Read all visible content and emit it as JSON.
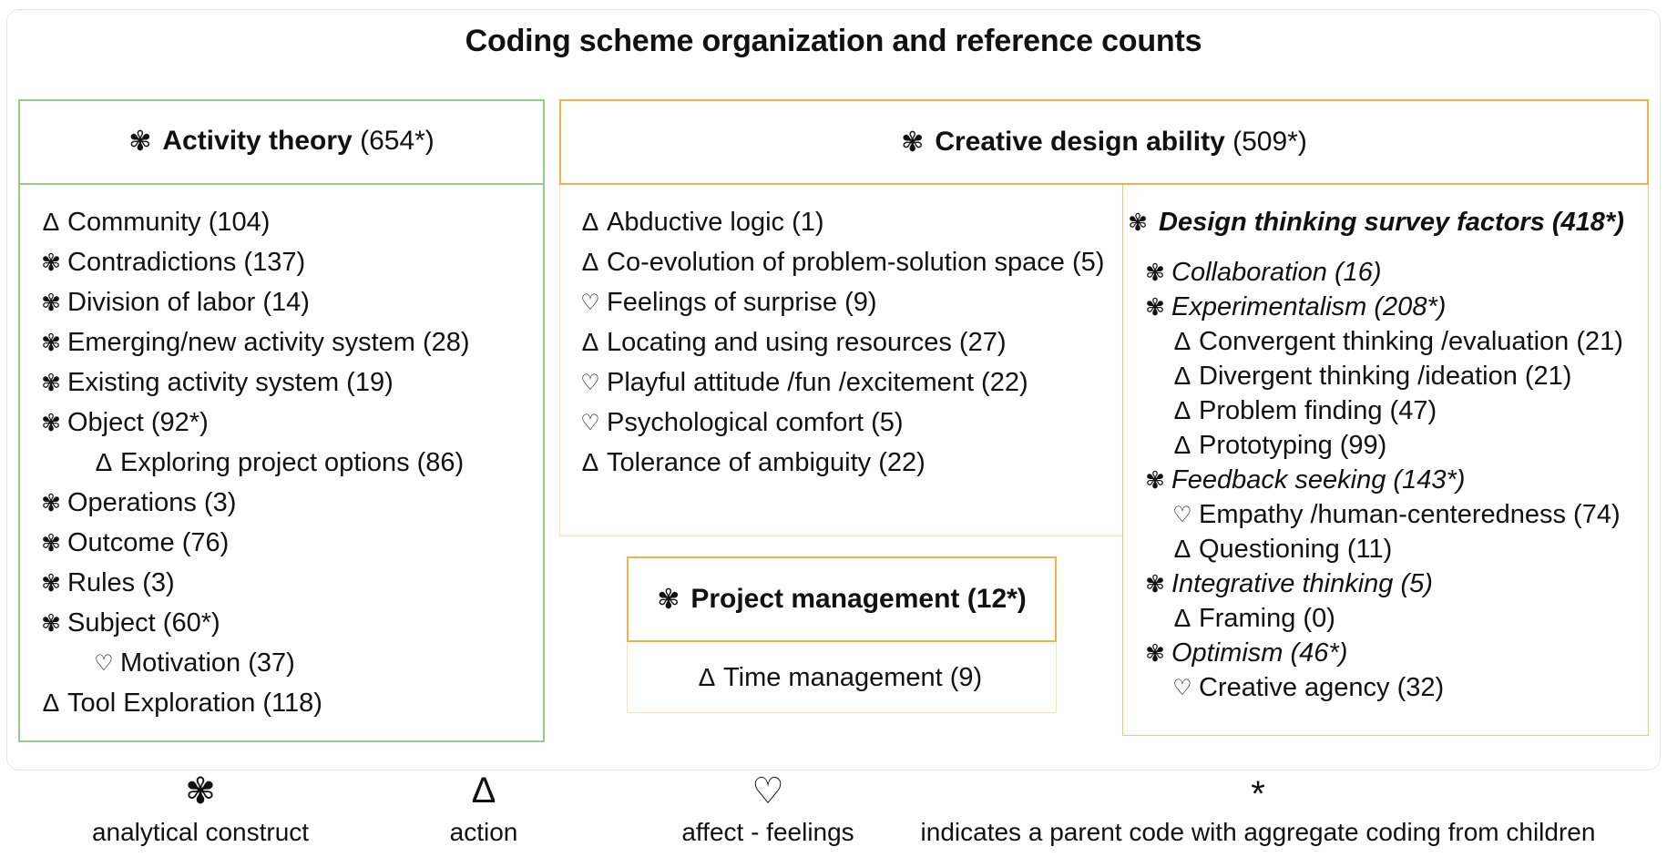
{
  "title": "Coding scheme organization and reference counts",
  "colors": {
    "green": "#9bc98b",
    "orange": "#f2b14a",
    "orange_light": "#fbe3b8"
  },
  "symbols": {
    "construct": "✾",
    "action": "Δ",
    "affect": "♡",
    "aggregate": "*"
  },
  "activity_theory": {
    "name": "Activity theory",
    "count": "(654*)",
    "items": [
      {
        "sym": "Δ",
        "type": "action",
        "label": "Community (104)"
      },
      {
        "sym": "✾",
        "type": "construct",
        "label": "Contradictions (137)"
      },
      {
        "sym": "✾",
        "type": "construct",
        "label": "Division of labor (14)"
      },
      {
        "sym": "✾",
        "type": "construct",
        "label": "Emerging/new activity system (28)"
      },
      {
        "sym": "✾",
        "type": "construct",
        "label": "Existing activity system (19)"
      },
      {
        "sym": "✾",
        "type": "construct",
        "label": "Object (92*)"
      },
      {
        "sym": "Δ",
        "type": "action",
        "label": "Exploring project options (86)",
        "indent": 1
      },
      {
        "sym": "✾",
        "type": "construct",
        "label": "Operations (3)"
      },
      {
        "sym": "✾",
        "type": "construct",
        "label": "Outcome (76)"
      },
      {
        "sym": "✾",
        "type": "construct",
        "label": "Rules (3)"
      },
      {
        "sym": "✾",
        "type": "construct",
        "label": "Subject (60*)"
      },
      {
        "sym": "♡",
        "type": "affect",
        "label": "Motivation (37)",
        "indent": 1
      },
      {
        "sym": "Δ",
        "type": "action",
        "label": "Tool Exploration (118)"
      }
    ]
  },
  "creative_design": {
    "name": "Creative design ability",
    "count": "(509*)",
    "items": [
      {
        "sym": "Δ",
        "type": "action",
        "label": "Abductive logic (1)"
      },
      {
        "sym": "Δ",
        "type": "action",
        "label": "Co-evolution of problem-solution space (5)"
      },
      {
        "sym": "♡",
        "type": "affect",
        "label": "Feelings of surprise (9)"
      },
      {
        "sym": "Δ",
        "type": "action",
        "label": "Locating and using resources (27)"
      },
      {
        "sym": "♡",
        "type": "affect",
        "label": "Playful attitude /fun /excitement (22)"
      },
      {
        "sym": "♡",
        "type": "affect",
        "label": "Psychological comfort (5)"
      },
      {
        "sym": "Δ",
        "type": "action",
        "label": "Tolerance of ambiguity (22)"
      }
    ]
  },
  "design_thinking": {
    "name": "Design thinking survey factors (418*)",
    "items": [
      {
        "sym": "✾",
        "type": "construct",
        "label": "Collaboration (16)",
        "style": "italic"
      },
      {
        "sym": "✾",
        "type": "construct",
        "label": "Experimentalism (208*)",
        "style": "italic"
      },
      {
        "sym": "Δ",
        "type": "action",
        "label": "Convergent thinking /evaluation (21)",
        "indent": 1
      },
      {
        "sym": "Δ",
        "type": "action",
        "label": "Divergent thinking /ideation (21)",
        "indent": 1
      },
      {
        "sym": "Δ",
        "type": "action",
        "label": "Problem finding (47)",
        "indent": 1
      },
      {
        "sym": "Δ",
        "type": "action",
        "label": "Prototyping (99)",
        "indent": 1
      },
      {
        "sym": "✾",
        "type": "construct",
        "label": "Feedback seeking (143*)",
        "style": "italic"
      },
      {
        "sym": "♡",
        "type": "affect",
        "label": "Empathy /human-centeredness (74)",
        "indent": 1
      },
      {
        "sym": "Δ",
        "type": "action",
        "label": "Questioning (11)",
        "indent": 1
      },
      {
        "sym": "✾",
        "type": "construct",
        "label": "Integrative thinking (5)",
        "style": "italic"
      },
      {
        "sym": "Δ",
        "type": "action",
        "label": "Framing (0)",
        "indent": 1
      },
      {
        "sym": "✾",
        "type": "construct",
        "label": "Optimism (46*)",
        "style": "italic"
      },
      {
        "sym": "♡",
        "type": "affect",
        "label": "Creative agency (32)",
        "indent": 1
      }
    ]
  },
  "project_management": {
    "name": "Project management",
    "count": "(12*)",
    "items": [
      {
        "sym": "Δ",
        "type": "action",
        "label": "Time management (9)"
      }
    ]
  },
  "legend": [
    {
      "sym": "✾",
      "label": "analytical construct"
    },
    {
      "sym": "Δ",
      "label": "action"
    },
    {
      "sym": "♡",
      "label": "affect - feelings"
    },
    {
      "sym": "*",
      "label": "indicates a parent code with aggregate coding from children"
    }
  ]
}
